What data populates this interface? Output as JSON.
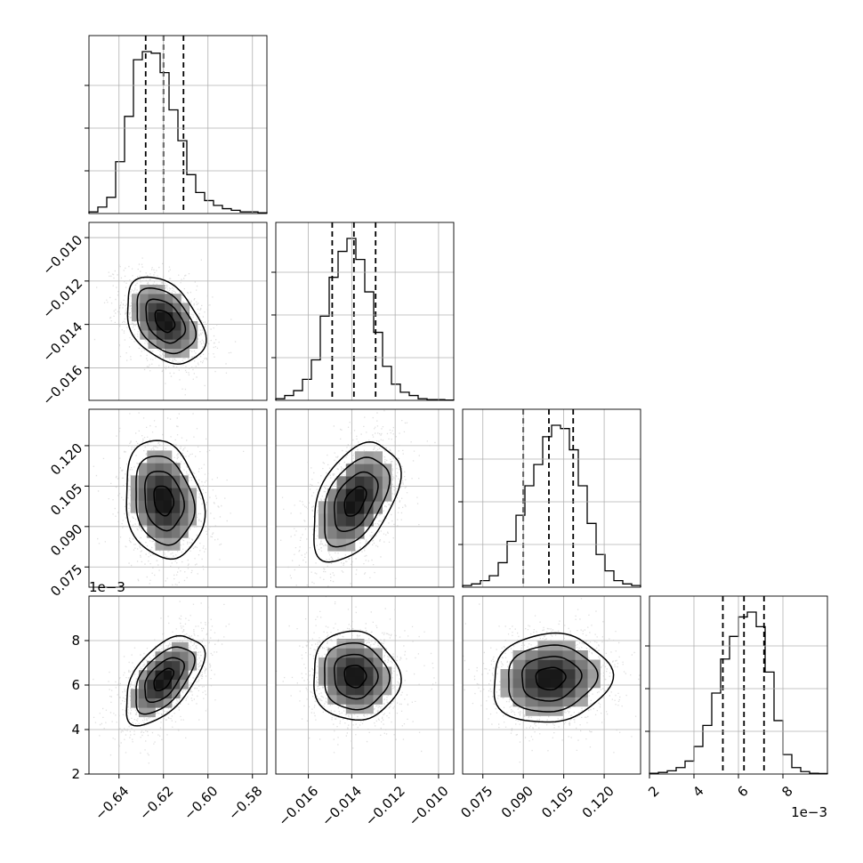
{
  "chart_data": {
    "type": "corner",
    "grid": true,
    "parameters": [
      {
        "ticks": [
          -0.64,
          -0.62,
          -0.6,
          -0.58
        ],
        "tick_labels": [
          "−0.64",
          "−0.62",
          "−0.60",
          "−0.58"
        ],
        "range": [
          -0.6535,
          -0.5735
        ]
      },
      {
        "ticks": [
          -0.016,
          -0.014,
          -0.012,
          -0.01
        ],
        "tick_labels": [
          "−0.016",
          "−0.014",
          "−0.012",
          "−0.010"
        ],
        "range": [
          -0.0175,
          -0.0093
        ]
      },
      {
        "ticks": [
          0.075,
          0.09,
          0.105,
          0.12
        ],
        "tick_labels": [
          "0.075",
          "0.090",
          "0.105",
          "0.120"
        ],
        "range": [
          0.0675,
          0.1335
        ]
      },
      {
        "ticks": [
          2,
          4,
          6,
          8
        ],
        "tick_labels": [
          "2",
          "4",
          "6",
          "8"
        ],
        "range": [
          2.0,
          10.0
        ],
        "offset_label": "1e−3"
      }
    ],
    "quantiles": [
      [
        -0.628,
        -0.62,
        -0.611
      ],
      [
        -0.0149,
        -0.0139,
        -0.0129
      ],
      [
        0.09,
        0.0995,
        0.1085
      ],
      [
        5.3,
        6.25,
        7.15
      ]
    ],
    "histograms": [
      [
        1,
        4,
        10,
        32,
        60,
        95,
        100,
        99,
        87,
        64,
        45,
        24,
        13,
        8,
        5,
        3,
        2,
        1,
        1,
        0.5
      ],
      [
        1,
        3,
        6,
        13,
        25,
        52,
        76,
        92,
        100,
        87,
        67,
        42,
        21,
        10,
        5,
        3,
        1,
        0.5,
        0.5,
        0.2
      ],
      [
        1,
        2,
        4,
        7,
        15,
        28,
        44,
        62,
        75,
        92,
        99,
        97,
        84,
        62,
        39,
        20,
        10,
        4,
        2,
        1
      ],
      [
        0.5,
        1,
        2,
        4,
        8,
        17,
        30,
        50,
        71,
        85,
        97,
        100,
        91,
        63,
        33,
        12,
        4,
        1.5,
        0.5,
        0.3
      ]
    ],
    "pairs": [
      {
        "row": 1,
        "col": 0,
        "center": [
          -0.6195,
          -0.01385
        ],
        "sd": [
          0.0088,
          0.001
        ],
        "rho": -0.38
      },
      {
        "row": 2,
        "col": 0,
        "center": [
          -0.62,
          0.0997
        ],
        "sd": [
          0.0088,
          0.011
        ],
        "rho": -0.18
      },
      {
        "row": 2,
        "col": 1,
        "center": [
          -0.01385,
          0.0994
        ],
        "sd": [
          0.001,
          0.011
        ],
        "rho": 0.45
      },
      {
        "row": 3,
        "col": 0,
        "center": [
          -0.62,
          6.25
        ],
        "sd": [
          0.0088,
          1.0
        ],
        "rho": 0.55
      },
      {
        "row": 3,
        "col": 1,
        "center": [
          -0.01385,
          6.4
        ],
        "sd": [
          0.001,
          1.0
        ],
        "rho": -0.05
      },
      {
        "row": 3,
        "col": 2,
        "center": [
          0.1,
          6.3
        ],
        "sd": [
          0.011,
          1.0
        ],
        "rho": 0.08
      }
    ]
  }
}
